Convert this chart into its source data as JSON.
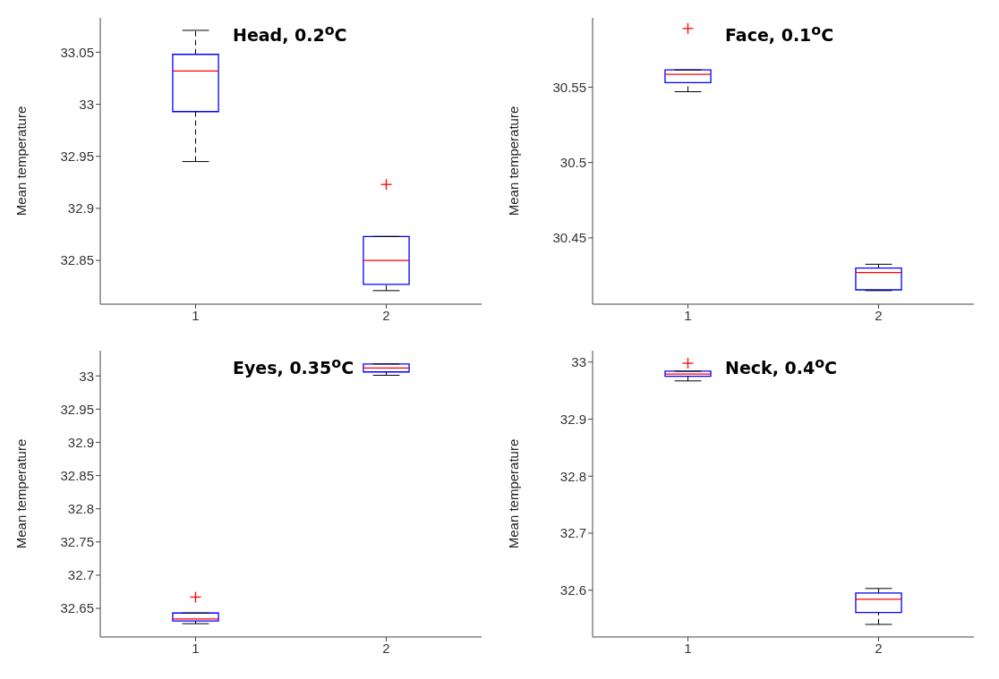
{
  "chart_data": [
    {
      "type": "box",
      "title": "Head, 0.2$^{o}$C",
      "ylabel": "Mean temperature",
      "categories": [
        "1",
        "2"
      ],
      "color": "#0000ff",
      "ylim": [
        32.808,
        33.083
      ],
      "yticks": [
        32.85,
        32.9,
        32.95,
        33,
        33.05
      ],
      "boxes": [
        {
          "low": 32.945,
          "q1": 32.993,
          "median": 33.032,
          "q3": 33.048,
          "high": 33.071
        },
        {
          "low": 32.821,
          "q1": 32.827,
          "median": 32.85,
          "q3": 32.873,
          "high": 32.873,
          "outliers": [
            32.923
          ]
        }
      ]
    },
    {
      "type": "box",
      "title": "Face, 0.1$^{o}$C",
      "ylabel": "Mean temperature",
      "categories": [
        "1",
        "2"
      ],
      "color": "#0000ff",
      "ylim": [
        30.406,
        30.596
      ],
      "yticks": [
        30.45,
        30.5,
        30.55
      ],
      "boxes": [
        {
          "low": 30.547,
          "q1": 30.553,
          "median": 30.5585,
          "q3": 30.5615,
          "high": 30.5615,
          "outliers": [
            30.589
          ]
        },
        {
          "low": 30.415,
          "q1": 30.4155,
          "median": 30.427,
          "q3": 30.43,
          "high": 30.4325
        }
      ]
    },
    {
      "type": "box",
      "title": "Eyes, 0.35$^{o}$C",
      "ylabel": "Mean temperature",
      "categories": [
        "1",
        "2"
      ],
      "color": "#0000ff",
      "ylim": [
        32.607,
        33.038
      ],
      "yticks": [
        32.65,
        32.7,
        32.75,
        32.8,
        32.85,
        32.9,
        32.95,
        33
      ],
      "boxes": [
        {
          "low": 32.627,
          "q1": 32.631,
          "median": 32.634,
          "q3": 32.643,
          "high": 32.643,
          "outliers": [
            32.667
          ]
        },
        {
          "low": 33.001,
          "q1": 33.006,
          "median": 33.012,
          "q3": 33.018,
          "high": 33.018
        }
      ]
    },
    {
      "type": "box",
      "title": "Neck, 0.4$^{o}$C",
      "ylabel": "Mean temperature",
      "categories": [
        "1",
        "2"
      ],
      "color": "#0000ff",
      "ylim": [
        32.518,
        33.02
      ],
      "yticks": [
        32.6,
        32.7,
        32.8,
        32.9,
        33
      ],
      "boxes": [
        {
          "low": 32.967,
          "q1": 32.975,
          "median": 32.979,
          "q3": 32.984,
          "high": 32.984,
          "outliers": [
            32.998
          ]
        },
        {
          "low": 32.54,
          "q1": 32.561,
          "median": 32.584,
          "q3": 32.595,
          "high": 32.603
        }
      ]
    }
  ]
}
